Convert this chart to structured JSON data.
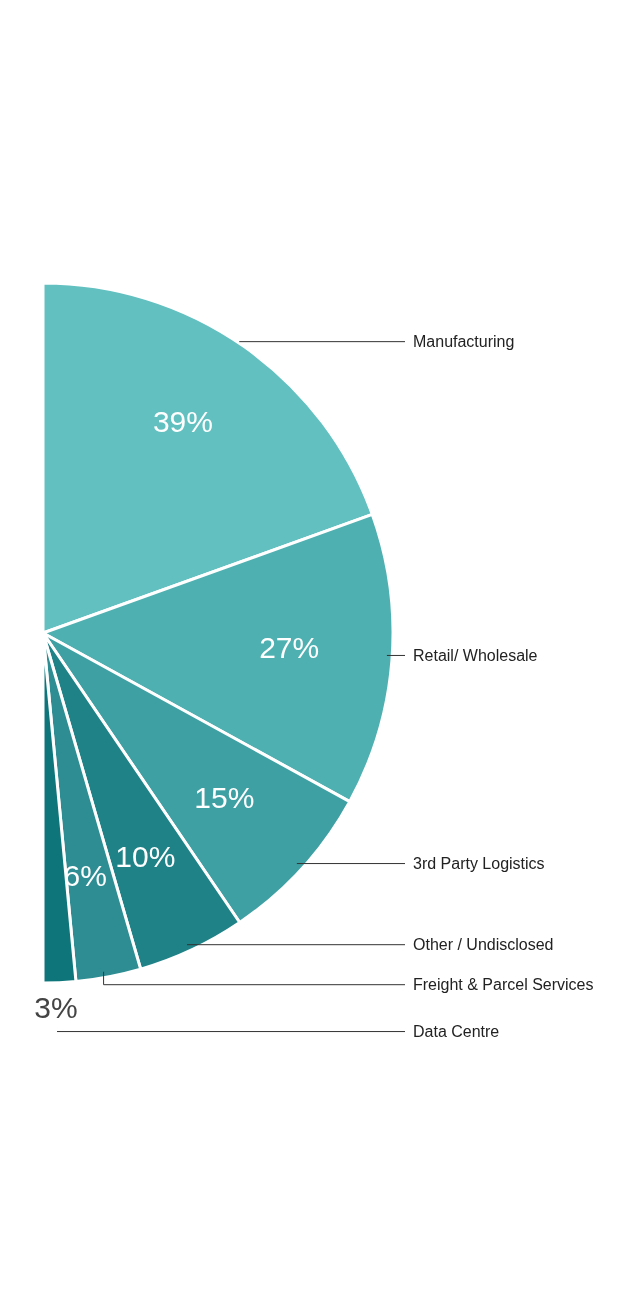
{
  "chart_data": {
    "type": "pie",
    "categories": [
      "Manufacturing",
      "Retail/ Wholesale",
      "3rd Party Logistics",
      "Other / Undisclosed",
      "Freight & Parcel Services",
      "Data Centre"
    ],
    "values": [
      39,
      27,
      15,
      10,
      6,
      3
    ],
    "value_labels": [
      "39%",
      "27%",
      "15%",
      "10%",
      "6%",
      "3%"
    ],
    "colors": [
      "#62c0c0",
      "#4fb0b1",
      "#3fa0a3",
      "#1f8287",
      "#2d8d92",
      "#0e767b"
    ]
  }
}
